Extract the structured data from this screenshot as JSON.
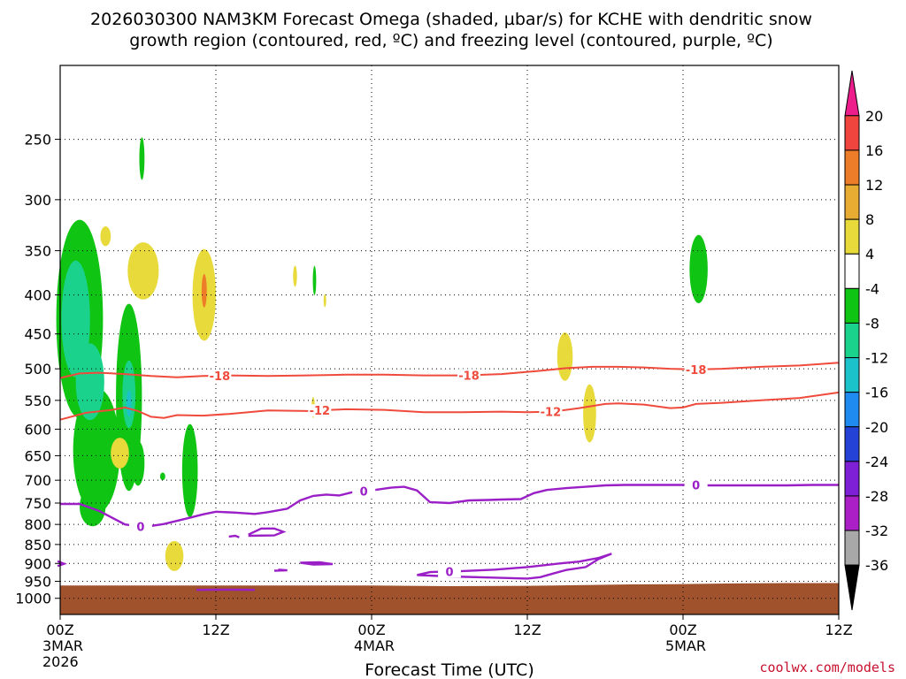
{
  "chart_data": {
    "type": "time-height",
    "title_line1": "2026030300 NAM3KM Forecast Omega (shaded, µbar/s) for KCHE with dendritic snow",
    "title_line2": "growth region (contoured, red, ºC) and freezing level (contoured, purple, ºC)",
    "xlabel": "Forecast Time (UTC)",
    "x_hours_range": [
      0,
      60
    ],
    "x_ticks": [
      {
        "hour": 0,
        "label": "00Z",
        "sub": "3MAR",
        "sub2": "2026"
      },
      {
        "hour": 12,
        "label": "12Z",
        "sub": "",
        "sub2": ""
      },
      {
        "hour": 24,
        "label": "00Z",
        "sub": "4MAR",
        "sub2": ""
      },
      {
        "hour": 36,
        "label": "12Z",
        "sub": "",
        "sub2": ""
      },
      {
        "hour": 48,
        "label": "00Z",
        "sub": "5MAR",
        "sub2": ""
      },
      {
        "hour": 60,
        "label": "12Z",
        "sub": "",
        "sub2": ""
      }
    ],
    "y_pressure_levels": [
      250,
      300,
      350,
      400,
      450,
      500,
      550,
      600,
      650,
      700,
      750,
      800,
      850,
      900,
      950,
      1000
    ],
    "y_range_hpa": [
      200,
      1050
    ],
    "y_scale": "log-pressure",
    "grid": "dotted horizontal at pressure levels",
    "colorbar": {
      "labels": [
        "20",
        "16",
        "12",
        "8",
        "4",
        "-4",
        "-8",
        "-12",
        "-16",
        "-20",
        "-24",
        "-28",
        "-32",
        "-36"
      ],
      "colors": [
        "#ed1e8c",
        "#f0453e",
        "#ee7d29",
        "#e8ac33",
        "#e8da3b",
        "#ffffff",
        "#0fc412",
        "#1bd28d",
        "#1cc2c9",
        "#1f8bf0",
        "#2443d6",
        "#7d20d6",
        "#aa20c6",
        "#a8a8a8",
        "#000000"
      ]
    },
    "dgz_contours": [
      {
        "value": "-18",
        "label_hours": [
          12.3,
          31.5,
          49.0
        ],
        "points": [
          [
            0,
            514
          ],
          [
            1.5,
            507
          ],
          [
            3,
            506
          ],
          [
            5,
            508
          ],
          [
            7,
            511
          ],
          [
            9,
            513
          ],
          [
            11,
            511
          ],
          [
            13,
            510
          ],
          [
            16,
            511
          ],
          [
            19,
            510
          ],
          [
            22,
            509
          ],
          [
            25,
            509
          ],
          [
            28,
            510
          ],
          [
            31,
            510
          ],
          [
            34,
            508
          ],
          [
            37,
            503
          ],
          [
            39,
            499
          ],
          [
            41,
            497
          ],
          [
            43,
            497
          ],
          [
            45,
            498
          ],
          [
            47,
            500
          ],
          [
            49,
            501
          ],
          [
            51,
            500
          ],
          [
            54,
            497
          ],
          [
            57,
            495
          ],
          [
            60,
            491
          ]
        ]
      },
      {
        "value": "-12",
        "label_hours": [
          20.0,
          37.8
        ],
        "points": [
          [
            0,
            583
          ],
          [
            2,
            571
          ],
          [
            4,
            566
          ],
          [
            5,
            562
          ],
          [
            6,
            568
          ],
          [
            7,
            578
          ],
          [
            8,
            580
          ],
          [
            9,
            575
          ],
          [
            11,
            576
          ],
          [
            13,
            573
          ],
          [
            16,
            567
          ],
          [
            19,
            568
          ],
          [
            22,
            565
          ],
          [
            25,
            566
          ],
          [
            28,
            570
          ],
          [
            31,
            570
          ],
          [
            34,
            569
          ],
          [
            36,
            570
          ],
          [
            38,
            569
          ],
          [
            40,
            563
          ],
          [
            42,
            556
          ],
          [
            43,
            555
          ],
          [
            45,
            557
          ],
          [
            47,
            563
          ],
          [
            48,
            562
          ],
          [
            49,
            556
          ],
          [
            51,
            554
          ],
          [
            54,
            550
          ],
          [
            57,
            546
          ],
          [
            60,
            537
          ]
        ]
      }
    ],
    "freezing_level_contours": [
      {
        "value": "0",
        "label_hours": [
          6.2,
          23.4,
          49.0,
          30.0
        ],
        "segments": [
          [
            [
              0,
              752
            ],
            [
              1.5,
              752
            ],
            [
              3,
              768
            ],
            [
              5,
              800
            ],
            [
              6.5,
              806
            ],
            [
              8,
              799
            ],
            [
              10,
              784
            ],
            [
              11,
              776
            ],
            [
              12,
              770
            ],
            [
              13.5,
              772
            ],
            [
              15,
              775
            ],
            [
              16,
              771
            ],
            [
              17.5,
              763
            ],
            [
              18.5,
              744
            ],
            [
              19.5,
              734
            ],
            [
              20.5,
              731
            ],
            [
              21.5,
              733
            ],
            [
              22.5,
              726
            ],
            [
              24,
              722
            ],
            [
              25.5,
              716
            ],
            [
              26.5,
              714
            ],
            [
              27.5,
              722
            ],
            [
              28.5,
              748
            ],
            [
              30,
              750
            ],
            [
              31.5,
              744
            ],
            [
              33,
              743
            ],
            [
              34,
              742
            ],
            [
              35.5,
              741
            ],
            [
              36.5,
              728
            ],
            [
              37.5,
              721
            ],
            [
              39,
              717
            ],
            [
              40.5,
              714
            ],
            [
              42,
              711
            ],
            [
              43.5,
              710
            ],
            [
              46,
              710
            ],
            [
              48,
              710
            ],
            [
              50,
              711
            ],
            [
              52,
              711
            ],
            [
              54,
              711
            ],
            [
              56,
              711
            ],
            [
              58,
              710
            ],
            [
              60,
              710
            ]
          ],
          [
            [
              10.5,
              975
            ],
            [
              13,
              974
            ],
            [
              15,
              975
            ]
          ],
          [
            [
              13,
              830
            ],
            [
              13.5,
              828
            ],
            [
              13.8,
              832
            ]
          ],
          [
            [
              14.5,
              825
            ],
            [
              15.5,
              810
            ],
            [
              16.5,
              810
            ],
            [
              17.2,
              818
            ],
            [
              16.5,
              827
            ],
            [
              14.5,
              828
            ]
          ],
          [
            [
              16.5,
              920
            ],
            [
              17.5,
              919
            ],
            [
              16.8,
              917
            ]
          ],
          [
            [
              18.5,
              898
            ],
            [
              20,
              897
            ],
            [
              21,
              902
            ],
            [
              19.5,
              903
            ],
            [
              18.5,
              898
            ]
          ],
          [
            [
              27.5,
              932
            ],
            [
              28.5,
              924
            ],
            [
              31,
              921
            ],
            [
              33.5,
              917
            ],
            [
              36,
              910
            ],
            [
              38.5,
              900
            ],
            [
              40,
              895
            ],
            [
              41.5,
              885
            ],
            [
              42.5,
              874
            ],
            [
              41.5,
              888
            ],
            [
              40.5,
              910
            ],
            [
              39,
              918
            ],
            [
              38,
              928
            ],
            [
              37,
              938
            ],
            [
              36,
              942
            ],
            [
              33,
              939
            ],
            [
              30,
              936
            ],
            [
              27.5,
              932
            ]
          ],
          [
            [
              -0.2,
              907
            ],
            [
              0.3,
              901
            ],
            [
              -0.2,
              894
            ]
          ]
        ]
      }
    ],
    "omega_regions": [
      {
        "color": "#0fc412",
        "cx": 1.5,
        "cy": 430,
        "rx": 1.8,
        "ry": 125
      },
      {
        "color": "#1bd28d",
        "cx": 1.2,
        "cy": 430,
        "rx": 1.1,
        "ry": 75
      },
      {
        "color": "#0fc412",
        "cx": 2.8,
        "cy": 640,
        "rx": 1.8,
        "ry": 120
      },
      {
        "color": "#1bd28d",
        "cx": 2.3,
        "cy": 520,
        "rx": 1.1,
        "ry": 60
      },
      {
        "color": "#0fc412",
        "cx": 5.3,
        "cy": 545,
        "rx": 1.0,
        "ry": 150
      },
      {
        "color": "#1bd28d",
        "cx": 5.3,
        "cy": 540,
        "rx": 0.5,
        "ry": 55
      },
      {
        "color": "#1cc2c9",
        "cx": 5.3,
        "cy": 555,
        "rx": 0.2,
        "ry": 22
      },
      {
        "color": "#0fc412",
        "cx": 2.5,
        "cy": 758,
        "rx": 1.0,
        "ry": 45
      },
      {
        "color": "#0fc412",
        "cx": 6.0,
        "cy": 665,
        "rx": 0.5,
        "ry": 45
      },
      {
        "color": "#0fc412",
        "cx": 10.0,
        "cy": 680,
        "rx": 0.6,
        "ry": 95
      },
      {
        "color": "#0fc412",
        "cx": 6.3,
        "cy": 265,
        "rx": 0.2,
        "ry": 17
      },
      {
        "color": "#0fc412",
        "cx": 19.6,
        "cy": 383,
        "rx": 0.13,
        "ry": 17
      },
      {
        "color": "#0fc412",
        "cx": 7.9,
        "cy": 692,
        "rx": 0.2,
        "ry": 8
      },
      {
        "color": "#0fc412",
        "cx": 49.2,
        "cy": 370,
        "rx": 0.7,
        "ry": 38
      },
      {
        "color": "#e8da3b",
        "cx": 6.4,
        "cy": 372,
        "rx": 1.2,
        "ry": 32
      },
      {
        "color": "#e8da3b",
        "cx": 3.5,
        "cy": 335,
        "rx": 0.4,
        "ry": 10
      },
      {
        "color": "#e8da3b",
        "cx": 11.1,
        "cy": 400,
        "rx": 0.9,
        "ry": 55
      },
      {
        "color": "#ee7d29",
        "cx": 11.1,
        "cy": 395,
        "rx": 0.2,
        "ry": 20
      },
      {
        "color": "#e8da3b",
        "cx": 4.6,
        "cy": 645,
        "rx": 0.7,
        "ry": 30
      },
      {
        "color": "#e8da3b",
        "cx": 8.8,
        "cy": 880,
        "rx": 0.7,
        "ry": 40
      },
      {
        "color": "#e8da3b",
        "cx": 18.1,
        "cy": 378,
        "rx": 0.15,
        "ry": 12
      },
      {
        "color": "#e8da3b",
        "cx": 20.4,
        "cy": 407,
        "rx": 0.1,
        "ry": 8
      },
      {
        "color": "#e8da3b",
        "cx": 19.5,
        "cy": 562,
        "rx": 0.13,
        "ry": 18
      },
      {
        "color": "#e8da3b",
        "cx": 38.9,
        "cy": 482,
        "rx": 0.6,
        "ry": 35
      },
      {
        "color": "#e8da3b",
        "cx": 40.8,
        "cy": 572,
        "rx": 0.5,
        "ry": 50
      }
    ],
    "ground_color": "#a0522d",
    "ground_top_hpa": [
      [
        0,
        962
      ],
      [
        24,
        962
      ],
      [
        30,
        964
      ],
      [
        36,
        963
      ],
      [
        44,
        959
      ],
      [
        48,
        958
      ],
      [
        52,
        956
      ],
      [
        56,
        955
      ],
      [
        60,
        955
      ]
    ]
  },
  "footer": {
    "credit": "coolwx.com/models"
  }
}
